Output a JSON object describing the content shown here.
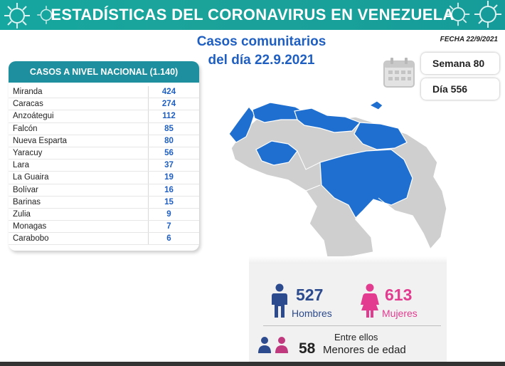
{
  "header": {
    "title": "ESTADÍSTICAS DEL CORONAVIRUS EN VENEZUELA",
    "subtitle_line1": "Casos comunitarios",
    "subtitle_line2": "del día 22.9.2021",
    "fecha": "FECHA 22/9/2021"
  },
  "badges": {
    "semana": "Semana 80",
    "dia": "Día 556"
  },
  "table": {
    "title": "CASOS A NIVEL NACIONAL (1.140)",
    "rows": [
      {
        "state": "Miranda",
        "cases": "424"
      },
      {
        "state": "Caracas",
        "cases": "274"
      },
      {
        "state": "Anzoátegui",
        "cases": "112"
      },
      {
        "state": "Falcón",
        "cases": "85"
      },
      {
        "state": "Nueva Esparta",
        "cases": "80"
      },
      {
        "state": "Yaracuy",
        "cases": "56"
      },
      {
        "state": "Lara",
        "cases": "37"
      },
      {
        "state": "La Guaira",
        "cases": "19"
      },
      {
        "state": "Bolívar",
        "cases": "16"
      },
      {
        "state": "Barinas",
        "cases": "15"
      },
      {
        "state": "Zulia",
        "cases": "9"
      },
      {
        "state": "Monagas",
        "cases": "7"
      },
      {
        "state": "Carabobo",
        "cases": "6"
      }
    ]
  },
  "stats": {
    "hombres_value": "527",
    "hombres_label": "Hombres",
    "mujeres_value": "613",
    "mujeres_label": "Mujeres",
    "entre_ellos": "Entre ellos",
    "menores_value": "58",
    "menores_label": "Menores de edad"
  },
  "colors": {
    "teal": "#15a7a0",
    "table_header": "#1d8f9e",
    "highlight_blue": "#1f6fd0",
    "male_blue": "#2c4a8e",
    "female_pink": "#e23b8f",
    "map_gray": "#cfcfcf"
  },
  "icons": [
    "virus-icon",
    "calendar-icon",
    "man-icon",
    "woman-icon",
    "children-icon"
  ]
}
